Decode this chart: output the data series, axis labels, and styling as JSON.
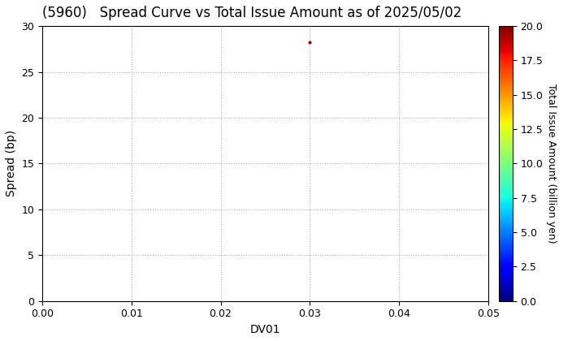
{
  "title": "(5960)   Spread Curve vs Total Issue Amount as of 2025/05/02",
  "xlabel": "DV01",
  "ylabel": "Spread (bp)",
  "colorbar_label": "Total Issue Amount (billion yen)",
  "xlim": [
    0.0,
    0.05
  ],
  "ylim": [
    0,
    30
  ],
  "xticks": [
    0.0,
    0.01,
    0.02,
    0.03,
    0.04,
    0.05
  ],
  "yticks": [
    0,
    5,
    10,
    15,
    20,
    25,
    30
  ],
  "colorbar_ticks": [
    0.0,
    2.5,
    5.0,
    7.5,
    10.0,
    12.5,
    15.0,
    17.5,
    20.0
  ],
  "scatter_x": [
    0.03
  ],
  "scatter_y": [
    28.2
  ],
  "scatter_color_value": [
    20.0
  ],
  "colormap": "jet",
  "color_vmin": 0.0,
  "color_vmax": 20.0,
  "background_color": "#ffffff",
  "grid_linestyle": ":",
  "grid_color": "#aaaaaa",
  "title_fontsize": 12,
  "axis_label_fontsize": 10,
  "tick_fontsize": 9,
  "colorbar_fontsize": 9,
  "marker_size": 8
}
